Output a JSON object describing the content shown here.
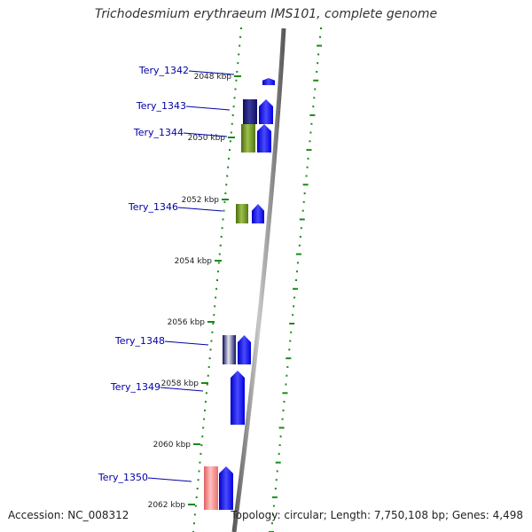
{
  "title": "Trichodesmium erythraeum IMS101, complete genome",
  "footer": {
    "accession": "Accession: NC_008312",
    "topology": "Topology: circular; Length: 7,750,108 bp; Genes: 4,498"
  },
  "colors": {
    "backbone": "#808080",
    "ruler": "#1a8a1a",
    "gene_label": "#0000aa",
    "cds": "#0000ff",
    "cog_navy": "#1a1a80",
    "cog_olive": "#6b8e23",
    "cog_salmon": "#f08080"
  },
  "ticks": [
    {
      "label": "2048 kbp"
    },
    {
      "label": "2050 kbp"
    },
    {
      "label": "2052 kbp"
    },
    {
      "label": "2054 kbp"
    },
    {
      "label": "2056 kbp"
    },
    {
      "label": "2058 kbp"
    },
    {
      "label": "2060 kbp"
    },
    {
      "label": "2062 kbp"
    }
  ],
  "genes": [
    {
      "label": "Tery_1342",
      "cog": null,
      "direction": "forward"
    },
    {
      "label": "Tery_1343",
      "cog": "navy",
      "direction": "forward"
    },
    {
      "label": "Tery_1344",
      "cog": "olive",
      "direction": "forward"
    },
    {
      "label": "Tery_1346",
      "cog": "olive",
      "direction": "forward"
    },
    {
      "label": "Tery_1348",
      "cog": "navy",
      "direction": "forward"
    },
    {
      "label": "Tery_1349",
      "cog": null,
      "direction": "forward"
    },
    {
      "label": "Tery_1350",
      "cog": "salmon",
      "direction": "forward"
    }
  ]
}
